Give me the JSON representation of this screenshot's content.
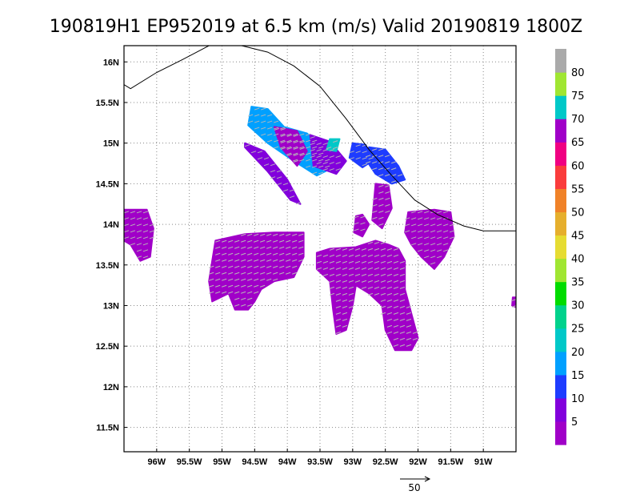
{
  "title": "190819H1 EP952019 at 6.5 km (m/s) Valid 20190819  1800Z",
  "map": {
    "lon_range": [
      -96.5,
      -90.5
    ],
    "lat_range": [
      11.2,
      16.2
    ],
    "lon_ticks": [
      {
        "value": -96.0,
        "label": "96W"
      },
      {
        "value": -95.5,
        "label": "95.5W"
      },
      {
        "value": -95.0,
        "label": "95W"
      },
      {
        "value": -94.5,
        "label": "94.5W"
      },
      {
        "value": -94.0,
        "label": "94W"
      },
      {
        "value": -93.5,
        "label": "93.5W"
      },
      {
        "value": -93.0,
        "label": "93W"
      },
      {
        "value": -92.5,
        "label": "92.5W"
      },
      {
        "value": -92.0,
        "label": "92W"
      },
      {
        "value": -91.5,
        "label": "91.5W"
      },
      {
        "value": -91.0,
        "label": "91W"
      }
    ],
    "lat_ticks": [
      {
        "value": 16.0,
        "label": "16N"
      },
      {
        "value": 15.5,
        "label": "15.5N"
      },
      {
        "value": 15.0,
        "label": "15N"
      },
      {
        "value": 14.5,
        "label": "14.5N"
      },
      {
        "value": 14.0,
        "label": "14N"
      },
      {
        "value": 13.5,
        "label": "13.5N"
      },
      {
        "value": 13.0,
        "label": "13N"
      },
      {
        "value": 12.5,
        "label": "12.5N"
      },
      {
        "value": 12.0,
        "label": "12N"
      },
      {
        "value": 11.5,
        "label": "11.5N"
      }
    ],
    "grid": "dotted",
    "coastline": [
      [
        -96.5,
        15.72
      ],
      [
        -96.4,
        15.67
      ],
      [
        -96.0,
        15.87
      ],
      [
        -95.6,
        16.03
      ],
      [
        -95.2,
        16.2
      ],
      [
        -94.7,
        16.2
      ],
      [
        -94.3,
        16.12
      ],
      [
        -93.9,
        15.95
      ],
      [
        -93.5,
        15.7
      ],
      [
        -93.1,
        15.3
      ],
      [
        -92.75,
        14.92
      ],
      [
        -92.4,
        14.6
      ],
      [
        -92.05,
        14.3
      ],
      [
        -91.7,
        14.12
      ],
      [
        -91.3,
        13.98
      ],
      [
        -91.0,
        13.92
      ],
      [
        -90.5,
        13.92
      ]
    ]
  },
  "wind_regions": [
    {
      "value": 18,
      "polygon": [
        [
          -94.55,
          15.45
        ],
        [
          -94.3,
          15.42
        ],
        [
          -94.05,
          15.2
        ],
        [
          -93.7,
          15.12
        ],
        [
          -93.45,
          14.95
        ],
        [
          -93.3,
          14.7
        ],
        [
          -93.55,
          14.6
        ],
        [
          -93.9,
          14.78
        ],
        [
          -94.3,
          15.0
        ],
        [
          -94.6,
          15.22
        ]
      ]
    },
    {
      "value": 3,
      "polygon": [
        [
          -94.2,
          15.2
        ],
        [
          -93.85,
          15.15
        ],
        [
          -93.7,
          14.9
        ],
        [
          -93.85,
          14.72
        ],
        [
          -94.1,
          14.95
        ]
      ]
    },
    {
      "value": 8,
      "polygon": [
        [
          -93.65,
          15.1
        ],
        [
          -93.35,
          15.02
        ],
        [
          -93.1,
          14.78
        ],
        [
          -93.25,
          14.62
        ],
        [
          -93.6,
          14.72
        ]
      ]
    },
    {
      "value": 20,
      "polygon": [
        [
          -93.35,
          15.05
        ],
        [
          -93.2,
          15.05
        ],
        [
          -93.25,
          14.9
        ],
        [
          -93.4,
          14.92
        ]
      ]
    },
    {
      "value": 8,
      "polygon": [
        [
          -94.65,
          15.0
        ],
        [
          -94.35,
          14.9
        ],
        [
          -94.0,
          14.55
        ],
        [
          -93.8,
          14.25
        ],
        [
          -93.95,
          14.3
        ],
        [
          -94.3,
          14.65
        ],
        [
          -94.65,
          14.95
        ]
      ]
    },
    {
      "value": 10,
      "polygon": [
        [
          -93.0,
          15.0
        ],
        [
          -92.8,
          14.98
        ],
        [
          -92.7,
          14.78
        ],
        [
          -92.85,
          14.7
        ],
        [
          -93.05,
          14.82
        ]
      ]
    },
    {
      "value": 10,
      "polygon": [
        [
          -92.75,
          14.95
        ],
        [
          -92.5,
          14.92
        ],
        [
          -92.3,
          14.72
        ],
        [
          -92.2,
          14.55
        ],
        [
          -92.4,
          14.5
        ],
        [
          -92.65,
          14.62
        ],
        [
          -92.8,
          14.8
        ]
      ]
    },
    {
      "value": 4,
      "polygon": [
        [
          -92.65,
          14.5
        ],
        [
          -92.45,
          14.48
        ],
        [
          -92.4,
          14.2
        ],
        [
          -92.55,
          13.95
        ],
        [
          -92.7,
          14.05
        ]
      ]
    },
    {
      "value": 4,
      "polygon": [
        [
          -96.5,
          14.18
        ],
        [
          -96.15,
          14.18
        ],
        [
          -96.05,
          13.95
        ],
        [
          -96.1,
          13.6
        ],
        [
          -96.25,
          13.55
        ],
        [
          -96.4,
          13.75
        ],
        [
          -96.5,
          13.8
        ]
      ]
    },
    {
      "value": 4,
      "polygon": [
        [
          -95.1,
          13.8
        ],
        [
          -94.65,
          13.88
        ],
        [
          -94.2,
          13.9
        ],
        [
          -93.75,
          13.9
        ],
        [
          -93.75,
          13.6
        ],
        [
          -93.9,
          13.35
        ],
        [
          -94.2,
          13.3
        ],
        [
          -94.4,
          13.2
        ],
        [
          -94.5,
          13.05
        ],
        [
          -94.6,
          12.95
        ],
        [
          -94.8,
          12.95
        ],
        [
          -94.9,
          13.15
        ],
        [
          -95.15,
          13.05
        ],
        [
          -95.2,
          13.3
        ],
        [
          -95.15,
          13.55
        ]
      ]
    },
    {
      "value": 4,
      "polygon": [
        [
          -93.35,
          13.7
        ],
        [
          -92.95,
          13.72
        ],
        [
          -92.65,
          13.8
        ],
        [
          -92.45,
          13.75
        ],
        [
          -92.3,
          13.7
        ],
        [
          -92.2,
          13.55
        ],
        [
          -92.2,
          13.2
        ],
        [
          -92.1,
          12.9
        ],
        [
          -92.0,
          12.6
        ],
        [
          -92.1,
          12.45
        ],
        [
          -92.35,
          12.45
        ],
        [
          -92.5,
          12.7
        ],
        [
          -92.55,
          13.0
        ],
        [
          -92.75,
          13.15
        ],
        [
          -92.95,
          13.25
        ],
        [
          -93.0,
          13.0
        ],
        [
          -93.1,
          12.7
        ],
        [
          -93.25,
          12.65
        ],
        [
          -93.3,
          12.95
        ],
        [
          -93.35,
          13.3
        ],
        [
          -93.55,
          13.45
        ],
        [
          -93.55,
          13.65
        ]
      ]
    },
    {
      "value": 4,
      "polygon": [
        [
          -92.15,
          14.15
        ],
        [
          -91.75,
          14.18
        ],
        [
          -91.5,
          14.15
        ],
        [
          -91.45,
          13.85
        ],
        [
          -91.6,
          13.6
        ],
        [
          -91.75,
          13.45
        ],
        [
          -91.95,
          13.6
        ],
        [
          -92.1,
          13.75
        ],
        [
          -92.2,
          13.9
        ]
      ]
    },
    {
      "value": 4,
      "polygon": [
        [
          -92.95,
          14.1
        ],
        [
          -92.85,
          14.12
        ],
        [
          -92.75,
          14.0
        ],
        [
          -92.85,
          13.85
        ],
        [
          -92.98,
          13.9
        ]
      ]
    },
    {
      "value": 4,
      "polygon": [
        [
          -90.55,
          13.1
        ],
        [
          -90.5,
          13.1
        ],
        [
          -90.5,
          12.98
        ],
        [
          -90.56,
          13.0
        ]
      ]
    }
  ],
  "colorbar": {
    "colors": [
      "#a000c8",
      "#8200dc",
      "#1e3cff",
      "#00a0ff",
      "#00c8c8",
      "#00d28c",
      "#00dc00",
      "#a0e632",
      "#e6dc32",
      "#e6af2d",
      "#f08228",
      "#fa3c3c",
      "#f00082",
      "#a000c8",
      "#00c8c8",
      "#a0e632",
      "#aaaaaa"
    ],
    "bounds": [
      0,
      5,
      10,
      15,
      20,
      25,
      30,
      35,
      40,
      45,
      50,
      55,
      60,
      65,
      70,
      75,
      80,
      85
    ],
    "labels": [
      "5",
      "10",
      "15",
      "20",
      "25",
      "30",
      "35",
      "40",
      "45",
      "50",
      "55",
      "60",
      "65",
      "70",
      "75",
      "80"
    ]
  },
  "vector_reference": {
    "label": "50",
    "value": 50
  }
}
